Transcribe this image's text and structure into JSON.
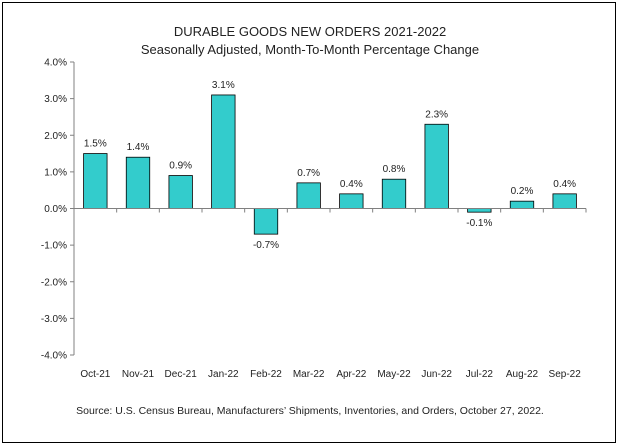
{
  "chart_data": {
    "type": "bar",
    "title": "DURABLE GOODS NEW ORDERS 2021-2022",
    "subtitle": "Seasonally Adjusted,  Month-To-Month Percentage Change",
    "categories": [
      "Oct-21",
      "Nov-21",
      "Dec-21",
      "Jan-22",
      "Feb-22",
      "Mar-22",
      "Apr-22",
      "May-22",
      "Jun-22",
      "Jul-22",
      "Aug-22",
      "Sep-22"
    ],
    "values": [
      1.5,
      1.4,
      0.9,
      3.1,
      -0.7,
      0.7,
      0.4,
      0.8,
      2.3,
      -0.1,
      0.2,
      0.4
    ],
    "data_labels": [
      "1.5%",
      "1.4%",
      "0.9%",
      "3.1%",
      "-0.7%",
      "0.7%",
      "0.4%",
      "0.8%",
      "2.3%",
      "-0.1%",
      "0.2%",
      "0.4%"
    ],
    "ylim": [
      -4.0,
      4.0
    ],
    "yticks": [
      4.0,
      3.0,
      2.0,
      1.0,
      0.0,
      -1.0,
      -2.0,
      -3.0,
      -4.0
    ],
    "ytick_labels": [
      "4.0%",
      "3.0%",
      "2.0%",
      "1.0%",
      "0.0%",
      "-1.0%",
      "-2.0%",
      "-3.0%",
      "-4.0%"
    ],
    "xlabel": "",
    "ylabel": "",
    "grid": false,
    "bar_color": "#33CCCC",
    "source": "Source: U.S. Census Bureau, Manufacturers’ Shipments, Inventories, and Orders, October 27, 2022."
  }
}
